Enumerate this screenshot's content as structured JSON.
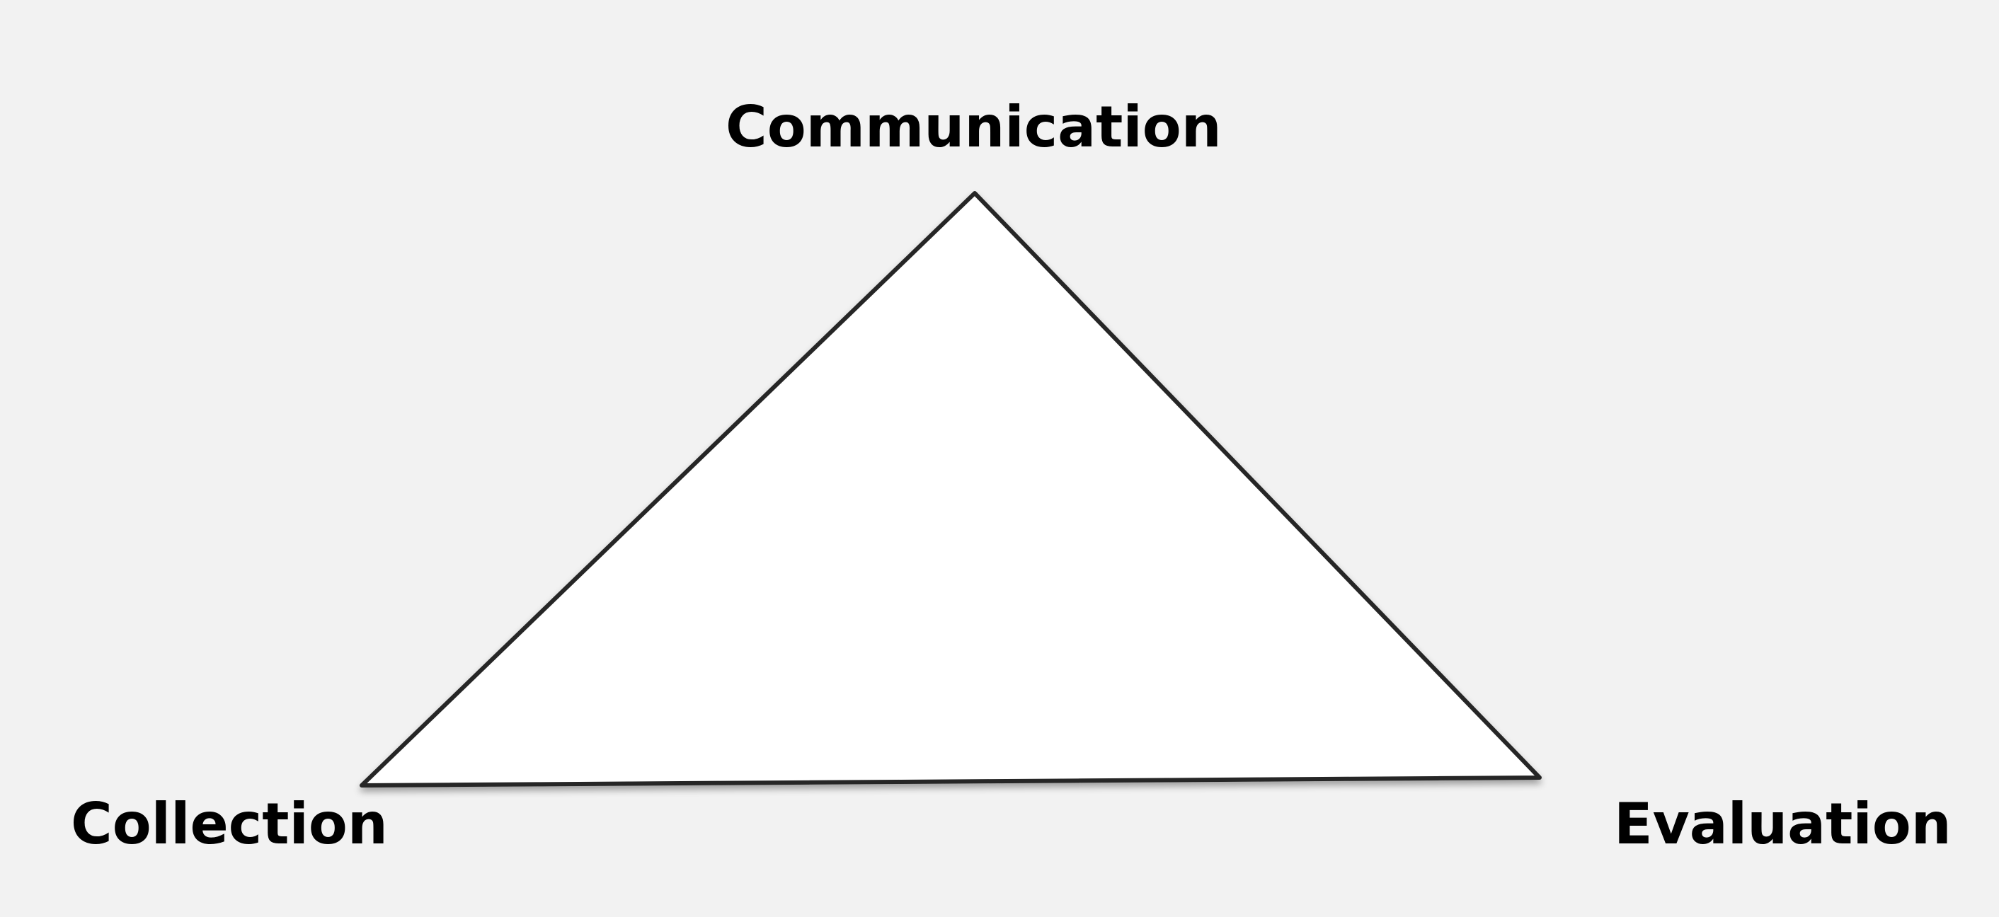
{
  "diagram": {
    "vertices": {
      "top": "Communication",
      "left": "Collection",
      "right": "Evaluation"
    },
    "colors": {
      "background": "#f2f2f2",
      "fill": "#ffffff",
      "stroke": "#262626",
      "text": "#000000"
    }
  }
}
